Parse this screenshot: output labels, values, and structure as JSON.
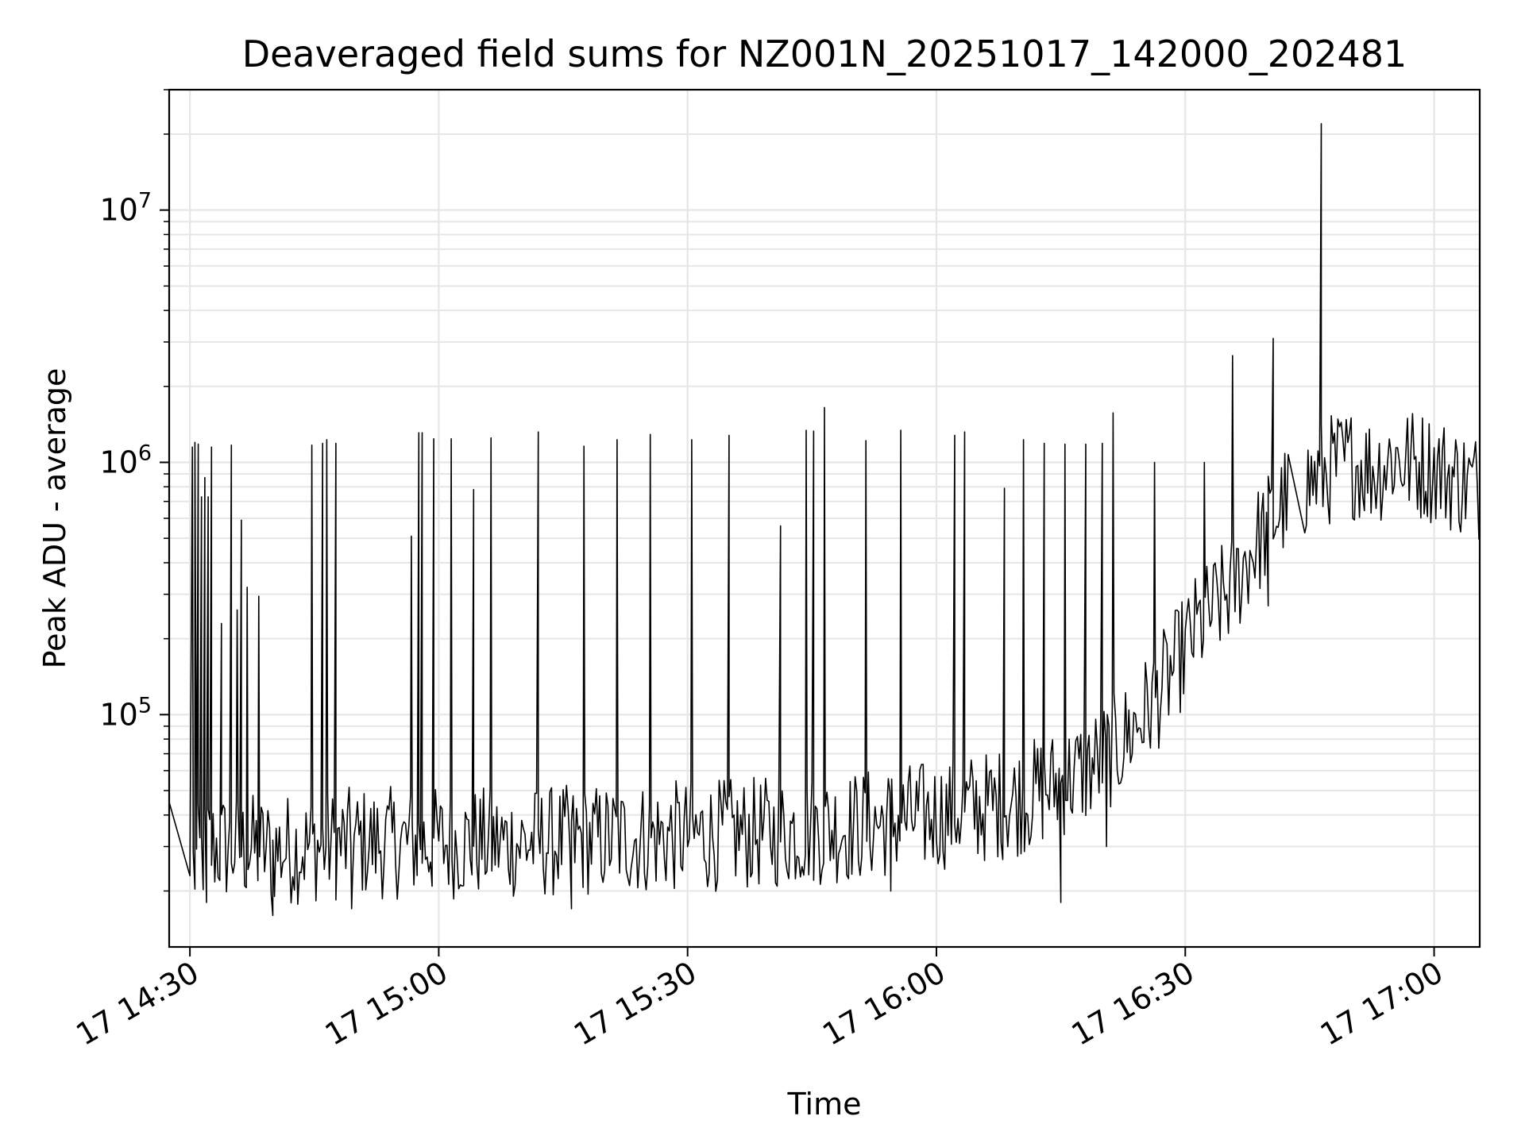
{
  "chart_data": {
    "type": "line",
    "title": "Deaveraged field sums for NZ001N_20251017_142000_202481",
    "xlabel": "Time",
    "ylabel": "Peak ADU - average",
    "yscale": "log",
    "ylim": [
      12000,
      30000000
    ],
    "xlim_minutes": [
      867.5,
      1025.5
    ],
    "grid": true,
    "line_color": "#000000",
    "x_ticks": [
      {
        "minute": 870,
        "label": "17 14:30"
      },
      {
        "minute": 900,
        "label": "17 15:00"
      },
      {
        "minute": 930,
        "label": "17 15:30"
      },
      {
        "minute": 960,
        "label": "17 16:00"
      },
      {
        "minute": 990,
        "label": "17 16:30"
      },
      {
        "minute": 1020,
        "label": "17 17:00"
      }
    ],
    "y_ticks": [
      {
        "value": 100000,
        "base": "10",
        "exp": "5"
      },
      {
        "value": 1000000,
        "base": "10",
        "exp": "6"
      },
      {
        "value": 10000000,
        "base": "10",
        "exp": "7"
      }
    ],
    "baseline": [
      [
        867.5,
        45000
      ],
      [
        870,
        23000
      ],
      [
        872,
        30000
      ],
      [
        880,
        29000
      ],
      [
        890,
        31000
      ],
      [
        900,
        31000
      ],
      [
        910,
        31000
      ],
      [
        920,
        32000
      ],
      [
        930,
        33000
      ],
      [
        940,
        34000
      ],
      [
        950,
        36000
      ],
      [
        955,
        38000
      ],
      [
        960,
        40000
      ],
      [
        963,
        42000
      ],
      [
        966,
        43000
      ],
      [
        970,
        46000
      ],
      [
        974,
        52000
      ],
      [
        978,
        60000
      ],
      [
        982,
        75000
      ],
      [
        985,
        100000
      ],
      [
        988,
        140000
      ],
      [
        991,
        210000
      ],
      [
        993,
        250000
      ],
      [
        996,
        330000
      ],
      [
        998,
        450000
      ],
      [
        1000,
        560000
      ],
      [
        1002,
        700000
      ],
      [
        1004,
        800000
      ],
      [
        1006,
        870000
      ],
      [
        1008,
        960000
      ],
      [
        1010,
        1000000
      ],
      [
        1013,
        930000
      ],
      [
        1015,
        1050000
      ],
      [
        1017,
        1000000
      ],
      [
        1020,
        950000
      ],
      [
        1023,
        850000
      ],
      [
        1025.5,
        800000
      ]
    ],
    "spikes": [
      [
        870.3,
        1150000
      ],
      [
        870.6,
        1200000
      ],
      [
        871.0,
        1180000
      ],
      [
        871.4,
        730000
      ],
      [
        871.8,
        870000
      ],
      [
        872.2,
        730000
      ],
      [
        872.6,
        1150000
      ],
      [
        873.8,
        230000
      ],
      [
        875.0,
        1170000
      ],
      [
        875.7,
        260000
      ],
      [
        876.2,
        590000
      ],
      [
        876.9,
        320000
      ],
      [
        878.3,
        295000
      ],
      [
        884.7,
        1170000
      ],
      [
        886.0,
        1190000
      ],
      [
        886.5,
        1230000
      ],
      [
        887.6,
        1190000
      ],
      [
        896.7,
        510000
      ],
      [
        897.6,
        1310000
      ],
      [
        898.0,
        1310000
      ],
      [
        899.4,
        1240000
      ],
      [
        901.5,
        1240000
      ],
      [
        904.2,
        780000
      ],
      [
        906.3,
        1250000
      ],
      [
        912.0,
        1320000
      ],
      [
        917.5,
        1160000
      ],
      [
        921.5,
        1230000
      ],
      [
        925.5,
        1290000
      ],
      [
        930.5,
        1230000
      ],
      [
        935.0,
        1280000
      ],
      [
        941.2,
        560000
      ],
      [
        944.3,
        1340000
      ],
      [
        945.2,
        1330000
      ],
      [
        946.5,
        1650000
      ],
      [
        951.5,
        1220000
      ],
      [
        955.7,
        1340000
      ],
      [
        962.2,
        1280000
      ],
      [
        963.4,
        1320000
      ],
      [
        968.2,
        790000
      ],
      [
        970.5,
        1230000
      ],
      [
        973.0,
        1190000
      ],
      [
        975.5,
        1180000
      ],
      [
        978.0,
        1180000
      ],
      [
        980.0,
        1190000
      ],
      [
        981.3,
        1570000
      ],
      [
        986.3,
        1000000
      ],
      [
        992.3,
        1000000
      ],
      [
        995.7,
        2650000
      ],
      [
        1000.6,
        3100000
      ],
      [
        1006.4,
        22000000
      ]
    ],
    "dips": [
      [
        872.0,
        18000
      ],
      [
        880.0,
        16000
      ],
      [
        889.5,
        17000
      ],
      [
        916.0,
        17000
      ],
      [
        954.5,
        20000
      ],
      [
        975.0,
        18000
      ],
      [
        980.5,
        30000
      ],
      [
        1000.0,
        270000
      ]
    ]
  }
}
